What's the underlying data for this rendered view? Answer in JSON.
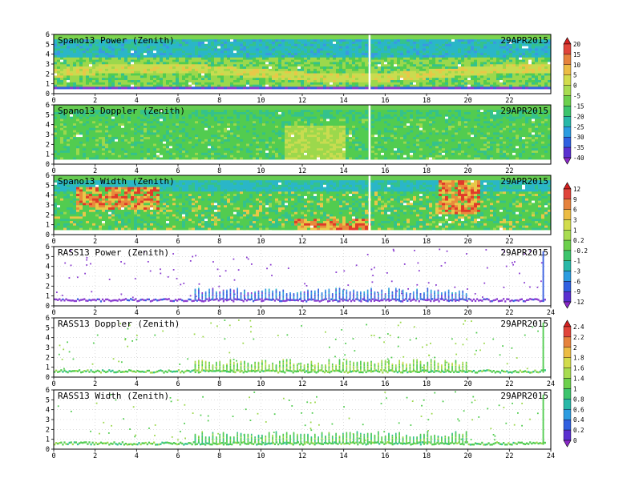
{
  "chart_data": [
    {
      "type": "heatmap",
      "title": "Spano13 Power (Zenith)",
      "date": "29APR2015",
      "colorbar": "power",
      "xlim": [
        0,
        24
      ],
      "ylim": [
        0,
        6
      ],
      "x_ticks": [
        "0",
        "2",
        "4",
        "6",
        "8",
        "10",
        "12",
        "14",
        "16",
        "18",
        "20",
        "22"
      ],
      "y_ticks": [
        "0",
        "1",
        "2",
        "3",
        "4",
        "5",
        "6"
      ]
    },
    {
      "type": "heatmap",
      "title": "Spano13 Doppler (Zenith)",
      "date": "29APR2015",
      "colorbar": "power",
      "xlim": [
        0,
        24
      ],
      "ylim": [
        0,
        6
      ],
      "x_ticks": [
        "0",
        "2",
        "4",
        "6",
        "8",
        "10",
        "12",
        "14",
        "16",
        "18",
        "20",
        "22"
      ],
      "y_ticks": [
        "0",
        "1",
        "2",
        "3",
        "4",
        "5",
        "6"
      ]
    },
    {
      "type": "heatmap",
      "title": "Spano13 Width (Zenith)",
      "date": "29APR2015",
      "colorbar": "width",
      "xlim": [
        0,
        24
      ],
      "ylim": [
        0,
        6
      ],
      "x_ticks": [
        "0",
        "2",
        "4",
        "6",
        "8",
        "10",
        "12",
        "14",
        "16",
        "18",
        "20",
        "22"
      ],
      "y_ticks": [
        "0",
        "1",
        "2",
        "3",
        "4",
        "5",
        "6"
      ]
    },
    {
      "type": "scatter",
      "title": "RASS13 Power (Zenith)",
      "date": "29APR2015",
      "colorbar": "width",
      "xlim": [
        0,
        24
      ],
      "ylim": [
        0,
        6
      ],
      "x_ticks": [
        "0",
        "2",
        "4",
        "6",
        "8",
        "10",
        "12",
        "14",
        "16",
        "18",
        "20",
        "22",
        "24"
      ],
      "y_ticks": [
        "0",
        "1",
        "2",
        "3",
        "4",
        "5",
        "6"
      ]
    },
    {
      "type": "scatter",
      "title": "RASS13 Doppler (Zenith)",
      "date": "29APR2015",
      "colorbar": "rass",
      "xlim": [
        0,
        24
      ],
      "ylim": [
        0,
        6
      ],
      "x_ticks": [
        "0",
        "2",
        "4",
        "6",
        "8",
        "10",
        "12",
        "14",
        "16",
        "18",
        "20",
        "22",
        "24"
      ],
      "y_ticks": [
        "0",
        "1",
        "2",
        "3",
        "4",
        "5",
        "6"
      ]
    },
    {
      "type": "scatter",
      "title": "RASS13 Width (Zenith)",
      "date": "29APR2015",
      "colorbar": "rass",
      "xlim": [
        0,
        24
      ],
      "ylim": [
        0,
        6
      ],
      "x_ticks": [
        "0",
        "2",
        "4",
        "6",
        "8",
        "10",
        "12",
        "14",
        "16",
        "18",
        "20",
        "22",
        "24"
      ],
      "y_ticks": [
        "0",
        "1",
        "2",
        "3",
        "4",
        "5",
        "6"
      ]
    }
  ],
  "colorbars": {
    "power": {
      "labels": [
        "20",
        "15",
        "10",
        "5",
        "0",
        "-5",
        "-15",
        "-20",
        "-25",
        "-30",
        "-35",
        "-40"
      ],
      "colors": [
        "#d42020",
        "#e0443a",
        "#e6823c",
        "#ecbc44",
        "#d2dc4c",
        "#a8dc50",
        "#6cd04c",
        "#3cc46c",
        "#28b8a8",
        "#2c9ce0",
        "#3060e0",
        "#5a30d0",
        "#8a28c8"
      ]
    },
    "width": {
      "labels": [
        "12",
        "9",
        "6",
        "3",
        "1",
        "0.2",
        "-0.2",
        "-1",
        "-3",
        "-6",
        "-9",
        "-12"
      ],
      "colors": [
        "#d42020",
        "#e0443a",
        "#e6823c",
        "#ecbc44",
        "#d2dc4c",
        "#a8dc50",
        "#6cd04c",
        "#3cc46c",
        "#28b8a8",
        "#2c9ce0",
        "#3060e0",
        "#5a30d0",
        "#8a28c8"
      ]
    },
    "rass": {
      "labels": [
        "2.4",
        "2.2",
        "2",
        "1.8",
        "1.6",
        "1.4",
        "1",
        "0.8",
        "0.6",
        "0.4",
        "0.2",
        "0"
      ],
      "colors": [
        "#d42020",
        "#e0443a",
        "#e6823c",
        "#ecbc44",
        "#d2dc4c",
        "#a8dc50",
        "#6cd04c",
        "#3cc46c",
        "#28b8a8",
        "#2c9ce0",
        "#3060e0",
        "#5a30d0",
        "#8a28c8"
      ]
    }
  }
}
